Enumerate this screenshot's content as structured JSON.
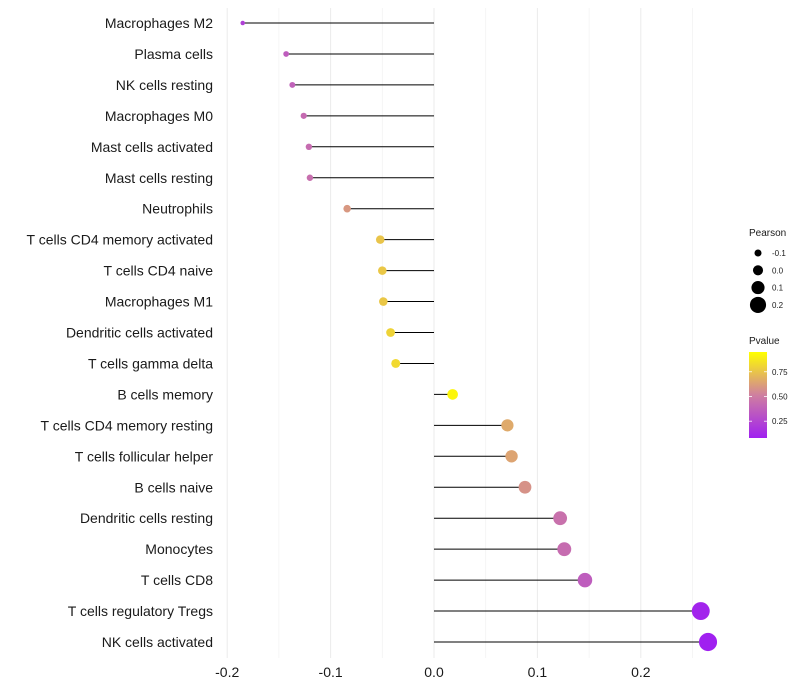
{
  "chart_data": {
    "type": "lollipop",
    "title": "",
    "xlabel": "",
    "ylabel": "",
    "xlim": [
      -0.2,
      0.27
    ],
    "x_ticks": [
      -0.2,
      -0.1,
      0.0,
      0.1,
      0.2
    ],
    "x_tick_labels": [
      "-0.2",
      "-0.1",
      "0.0",
      "0.1",
      "0.2"
    ],
    "grid": true,
    "points": [
      {
        "label": "Macrophages M2",
        "pearson": -0.185,
        "pvalue": 0.22
      },
      {
        "label": "Plasma cells",
        "pearson": -0.143,
        "pvalue": 0.36
      },
      {
        "label": "NK cells resting",
        "pearson": -0.137,
        "pvalue": 0.38
      },
      {
        "label": "Macrophages M0",
        "pearson": -0.126,
        "pvalue": 0.42
      },
      {
        "label": "Mast cells activated",
        "pearson": -0.121,
        "pvalue": 0.43
      },
      {
        "label": "Mast cells resting",
        "pearson": -0.12,
        "pvalue": 0.44
      },
      {
        "label": "Neutrophils",
        "pearson": -0.084,
        "pvalue": 0.6
      },
      {
        "label": "T cells CD4 memory activated",
        "pearson": -0.052,
        "pvalue": 0.75
      },
      {
        "label": "T cells CD4 naive",
        "pearson": -0.05,
        "pvalue": 0.76
      },
      {
        "label": "Macrophages M1",
        "pearson": -0.049,
        "pvalue": 0.76
      },
      {
        "label": "Dendritic cells activated",
        "pearson": -0.042,
        "pvalue": 0.8
      },
      {
        "label": "T cells gamma delta",
        "pearson": -0.037,
        "pvalue": 0.82
      },
      {
        "label": "B cells memory",
        "pearson": 0.018,
        "pvalue": 0.92
      },
      {
        "label": "T cells CD4 memory resting",
        "pearson": 0.071,
        "pvalue": 0.66
      },
      {
        "label": "T cells follicular helper",
        "pearson": 0.075,
        "pvalue": 0.64
      },
      {
        "label": "B cells naive",
        "pearson": 0.088,
        "pvalue": 0.58
      },
      {
        "label": "Dendritic cells resting",
        "pearson": 0.122,
        "pvalue": 0.45
      },
      {
        "label": "Monocytes",
        "pearson": 0.126,
        "pvalue": 0.43
      },
      {
        "label": "T cells CD8",
        "pearson": 0.146,
        "pvalue": 0.36
      },
      {
        "label": "T cells regulatory  Tregs",
        "pearson": 0.258,
        "pvalue": 0.1
      },
      {
        "label": "NK cells activated",
        "pearson": 0.265,
        "pvalue": 0.08
      }
    ],
    "legend_size": {
      "title": "Pearson",
      "values": [
        -0.1,
        0.0,
        0.1,
        0.2
      ],
      "labels": [
        "-0.1",
        "0.0",
        "0.1",
        "0.2"
      ]
    },
    "legend_color": {
      "title": "Pvalue",
      "range": [
        0.08,
        0.95
      ],
      "ticks": [
        0.75,
        0.5,
        0.25
      ],
      "tick_labels": [
        "0.75",
        "0.50",
        "0.25"
      ],
      "color_high": "#ffff00",
      "color_mid": "#cf7fa0",
      "color_low": "#a020f0"
    },
    "line_color": "#000000",
    "grid_color": "#ebebeb"
  }
}
